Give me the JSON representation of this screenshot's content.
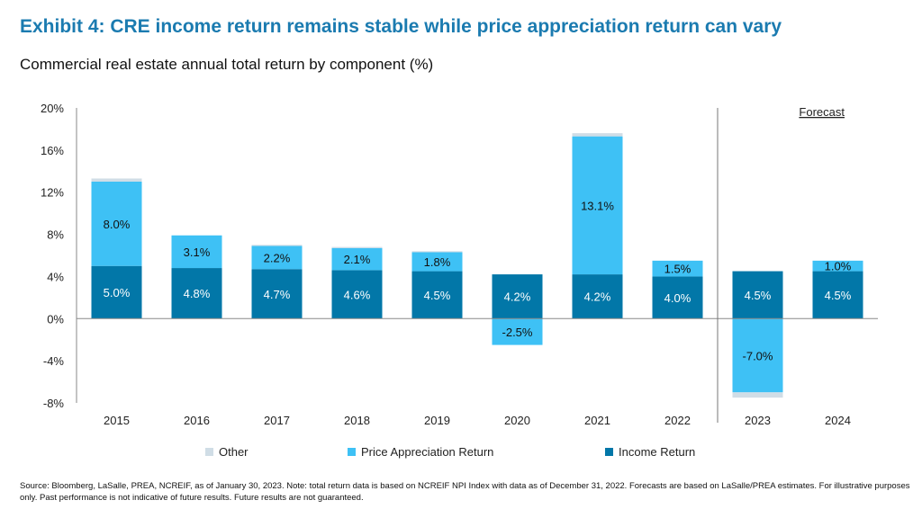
{
  "title": "Exhibit 4: CRE income return remains stable while price appreciation return can vary",
  "subtitle": "Commercial real estate annual total return by component (%)",
  "source": "Source: Bloomberg, LaSalle, PREA, NCREIF, as of January 30, 2023. Note: total return data is based on NCREIF NPI Index with data as of December 31, 2022. Forecasts are based on LaSalle/PREA estimates. For illustrative purposes only. Past performance is not indicative of future results. Future results are not guaranteed.",
  "chart_data": {
    "type": "bar",
    "stacked": true,
    "categories": [
      "2015",
      "2016",
      "2017",
      "2018",
      "2019",
      "2020",
      "2021",
      "2022",
      "2023",
      "2024"
    ],
    "series": [
      {
        "name": "Income Return",
        "color": "#0277a8",
        "values": [
          5.0,
          4.8,
          4.7,
          4.6,
          4.5,
          4.2,
          4.2,
          4.0,
          4.5,
          4.5
        ],
        "labels": [
          "5.0%",
          "4.8%",
          "4.7%",
          "4.6%",
          "4.5%",
          "4.2%",
          "4.2%",
          "4.0%",
          "4.5%",
          "4.5%"
        ]
      },
      {
        "name": "Price Appreciation Return",
        "color": "#3ec1f5",
        "values": [
          8.0,
          3.1,
          2.2,
          2.1,
          1.8,
          -2.5,
          13.1,
          1.5,
          -7.0,
          1.0
        ],
        "labels": [
          "8.0%",
          "3.1%",
          "2.2%",
          "2.1%",
          "1.8%",
          "-2.5%",
          "13.1%",
          "1.5%",
          "-7.0%",
          "1.0%"
        ]
      },
      {
        "name": "Other",
        "color": "#d0dde6",
        "values": [
          0.3,
          0.0,
          0.1,
          0.1,
          0.1,
          0.0,
          0.3,
          0.0,
          -0.5,
          0.0
        ]
      }
    ],
    "ylim": [
      -8,
      20
    ],
    "yticks": [
      "-8%",
      "-4%",
      "0%",
      "4%",
      "8%",
      "12%",
      "16%",
      "20%"
    ],
    "ytick_values": [
      -8,
      -4,
      0,
      4,
      8,
      12,
      16,
      20
    ],
    "annotation": "Forecast",
    "forecast_start": "2023",
    "legend_order": [
      "Other",
      "Price Appreciation Return",
      "Income Return"
    ],
    "legend_position": "bottom",
    "grid": false
  }
}
